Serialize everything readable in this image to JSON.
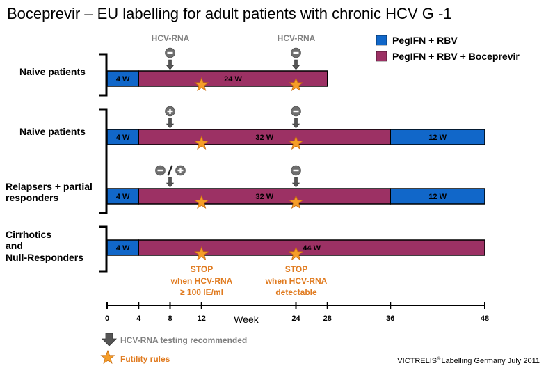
{
  "title": "Boceprevir – EU labelling for adult patients with chronic HCV G -1",
  "colors": {
    "blue": "#1167c9",
    "purple": "#9c3164",
    "orange": "#f59d28",
    "grey": "#808080",
    "stop_text": "#e07b20"
  },
  "legend": [
    {
      "label": "PegIFN + RBV",
      "color": "#1167c9"
    },
    {
      "label": "PegIFN + RBV + Boceprevir",
      "color": "#9c3164"
    }
  ],
  "hcv_rna_labels": [
    "HCV-RNA",
    "HCV-RNA"
  ],
  "groups": [
    {
      "labels": [
        "Naive patients"
      ],
      "rows": [
        {
          "segments": [
            {
              "label": "4 W",
              "from": 0,
              "to": 4,
              "color": "blue"
            },
            {
              "label": "24 W",
              "from": 4,
              "to": 28,
              "color": "purple"
            }
          ],
          "markers": [
            {
              "week": 8,
              "sign": "-"
            },
            {
              "week": 24,
              "sign": "-"
            }
          ],
          "futility_weeks": [
            12,
            24
          ]
        }
      ]
    },
    {
      "labels": [
        "Naive patients",
        "Relapsers + partial",
        "responders"
      ],
      "rows": [
        {
          "segments": [
            {
              "label": "4 W",
              "from": 0,
              "to": 4,
              "color": "blue"
            },
            {
              "label": "32 W",
              "from": 4,
              "to": 36,
              "color": "purple"
            },
            {
              "label": "12 W",
              "from": 36,
              "to": 48,
              "color": "blue"
            }
          ],
          "markers": [
            {
              "week": 8,
              "sign": "+"
            },
            {
              "week": 24,
              "sign": "-"
            }
          ],
          "futility_weeks": [
            12,
            24
          ]
        },
        {
          "segments": [
            {
              "label": "4 W",
              "from": 0,
              "to": 4,
              "color": "blue"
            },
            {
              "label": "32 W",
              "from": 4,
              "to": 36,
              "color": "purple"
            },
            {
              "label": "12 W",
              "from": 36,
              "to": 48,
              "color": "blue"
            }
          ],
          "markers": [
            {
              "week": 8,
              "sign": "-/+"
            },
            {
              "week": 24,
              "sign": "-"
            }
          ],
          "futility_weeks": [
            12,
            24
          ]
        }
      ]
    },
    {
      "labels": [
        "Cirrhotics",
        "and",
        "Null-Responders"
      ],
      "rows": [
        {
          "segments": [
            {
              "label": "4 W",
              "from": 0,
              "to": 4,
              "color": "blue"
            },
            {
              "label": "44 W",
              "from": 4,
              "to": 48,
              "color": "purple"
            }
          ],
          "markers": [],
          "futility_weeks": [
            12,
            24
          ]
        }
      ]
    }
  ],
  "stop_notes": [
    {
      "week": 12,
      "lines": [
        "STOP",
        "when HCV-RNA",
        "≥ 100 IE/ml"
      ]
    },
    {
      "week": 24,
      "lines": [
        "STOP",
        "when HCV-RNA",
        "detectable"
      ]
    }
  ],
  "axis": {
    "title": "Week",
    "ticks": [
      0,
      4,
      8,
      12,
      24,
      28,
      36,
      48
    ],
    "min": 0,
    "max": 48
  },
  "key": [
    {
      "icon": "down-arrow-icon",
      "label": "HCV-RNA testing recommended"
    },
    {
      "icon": "star-icon",
      "label": "Futility rules"
    }
  ],
  "footer": {
    "brand": "VICTRELIS",
    "mark": "®",
    "rest": "Labelling Germany July 2011"
  }
}
